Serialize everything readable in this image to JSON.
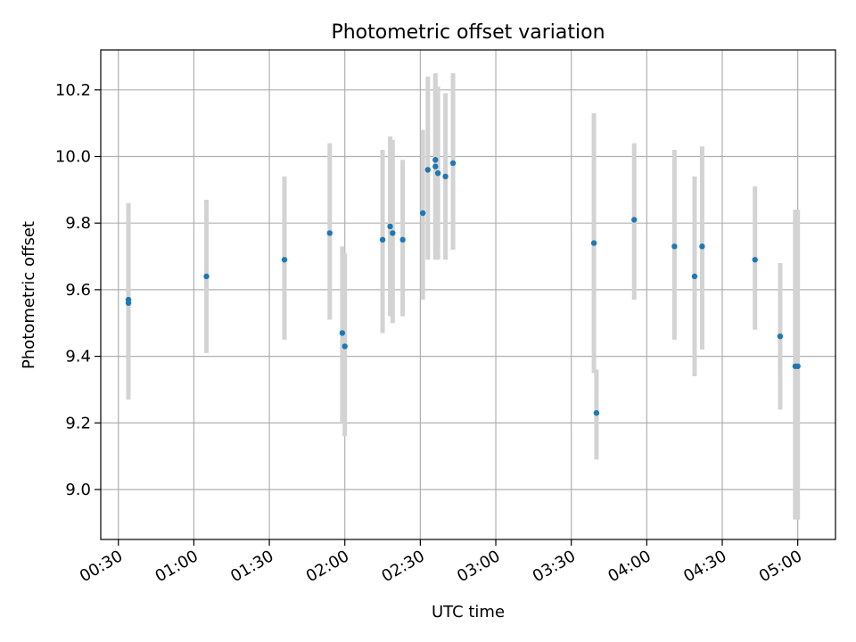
{
  "chart_data": {
    "type": "scatter",
    "title": "Photometric offset variation",
    "xlabel": "UTC time",
    "ylabel": "Photometric offset",
    "x_unit": "UTC HH:MM",
    "xlim": [
      "00:23",
      "05:15"
    ],
    "ylim": [
      8.85,
      10.32
    ],
    "grid": true,
    "xticks": [
      "00:30",
      "01:00",
      "01:30",
      "02:00",
      "02:30",
      "03:00",
      "03:30",
      "04:00",
      "04:30",
      "05:00"
    ],
    "yticks": [
      "9.0",
      "9.2",
      "9.4",
      "9.6",
      "9.8",
      "10.0",
      "10.2"
    ],
    "point_color": "#1f77b4",
    "errorbar_color": "#d3d3d3",
    "series": [
      {
        "points": [
          {
            "t": "00:34",
            "y": 9.57,
            "lo": 9.3,
            "hi": 9.84
          },
          {
            "t": "00:34",
            "y": 9.56,
            "lo": 9.27,
            "hi": 9.86
          },
          {
            "t": "01:05",
            "y": 9.64,
            "lo": 9.41,
            "hi": 9.87
          },
          {
            "t": "01:36",
            "y": 9.69,
            "lo": 9.45,
            "hi": 9.94
          },
          {
            "t": "01:54",
            "y": 9.77,
            "lo": 9.51,
            "hi": 10.04
          },
          {
            "t": "01:59",
            "y": 9.47,
            "lo": 9.2,
            "hi": 9.73
          },
          {
            "t": "02:00",
            "y": 9.43,
            "lo": 9.16,
            "hi": 9.71
          },
          {
            "t": "02:15",
            "y": 9.75,
            "lo": 9.47,
            "hi": 10.02
          },
          {
            "t": "02:18",
            "y": 9.79,
            "lo": 9.52,
            "hi": 10.06
          },
          {
            "t": "02:19",
            "y": 9.77,
            "lo": 9.5,
            "hi": 10.05
          },
          {
            "t": "02:23",
            "y": 9.75,
            "lo": 9.52,
            "hi": 9.99
          },
          {
            "t": "02:31",
            "y": 9.83,
            "lo": 9.57,
            "hi": 10.08
          },
          {
            "t": "02:33",
            "y": 9.96,
            "lo": 9.69,
            "hi": 10.24
          },
          {
            "t": "02:36",
            "y": 9.99,
            "lo": 9.72,
            "hi": 10.25
          },
          {
            "t": "02:36",
            "y": 9.97,
            "lo": 9.69,
            "hi": 10.23
          },
          {
            "t": "02:37",
            "y": 9.95,
            "lo": 9.69,
            "hi": 10.21
          },
          {
            "t": "02:40",
            "y": 9.94,
            "lo": 9.69,
            "hi": 10.19
          },
          {
            "t": "02:43",
            "y": 9.98,
            "lo": 9.72,
            "hi": 10.25
          },
          {
            "t": "03:39",
            "y": 9.74,
            "lo": 9.35,
            "hi": 10.13
          },
          {
            "t": "03:40",
            "y": 9.23,
            "lo": 9.09,
            "hi": 9.36
          },
          {
            "t": "03:55",
            "y": 9.81,
            "lo": 9.57,
            "hi": 10.04
          },
          {
            "t": "04:11",
            "y": 9.73,
            "lo": 9.45,
            "hi": 10.02
          },
          {
            "t": "04:19",
            "y": 9.64,
            "lo": 9.34,
            "hi": 9.94
          },
          {
            "t": "04:22",
            "y": 9.73,
            "lo": 9.42,
            "hi": 10.03
          },
          {
            "t": "04:43",
            "y": 9.69,
            "lo": 9.48,
            "hi": 9.91
          },
          {
            "t": "04:53",
            "y": 9.46,
            "lo": 9.24,
            "hi": 9.68
          },
          {
            "t": "04:59",
            "y": 9.37,
            "lo": 8.91,
            "hi": 9.84
          },
          {
            "t": "05:00",
            "y": 9.37,
            "lo": 8.91,
            "hi": 9.84
          }
        ]
      }
    ]
  }
}
